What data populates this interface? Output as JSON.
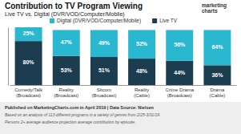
{
  "chart_data": {
    "type": "bar",
    "title": "Contribution to TV Program Viewing",
    "subtitle": "Live TV vs. Digital (DVR/VOD/Computer/Mobile)",
    "categories": [
      "Comedy/Talk\n(Broadcast)",
      "Reality\n(Broadcast)",
      "Sitcom\n(Broadcast)",
      "Reality\n(Cable)",
      "Crime Drama\n(Broadcast)",
      "Drama\n(Cable)"
    ],
    "series": [
      {
        "name": "Live TV",
        "color": "#1c3d4f",
        "values": [
          80,
          53,
          51,
          48,
          44,
          36
        ],
        "value_labels": [
          "80%",
          "53%",
          "51%",
          "48%",
          "44%",
          "36%"
        ]
      },
      {
        "name": "Digital (DVR/VOD/Computer/Mobile)",
        "color": "#29b8d0",
        "values": [
          25,
          47,
          49,
          52,
          56,
          64
        ],
        "value_labels": [
          "25%",
          "47%",
          "49%",
          "52%",
          "56%",
          "64%"
        ]
      }
    ],
    "stacked": true,
    "data_labels": true,
    "ylim": [
      0,
      105
    ],
    "tick_labels": "x",
    "grid": false,
    "legend": "top",
    "annotations": [
      "marketing\ncharts",
      "Published on MarketingCharts.com in April 2019 | Data Source: Nielsen",
      "Based on an analysis of 113 different programs in a variety of genres from 2/25-3/31/19.",
      "Persons 2+ average audience projection average contribution by episode."
    ]
  }
}
